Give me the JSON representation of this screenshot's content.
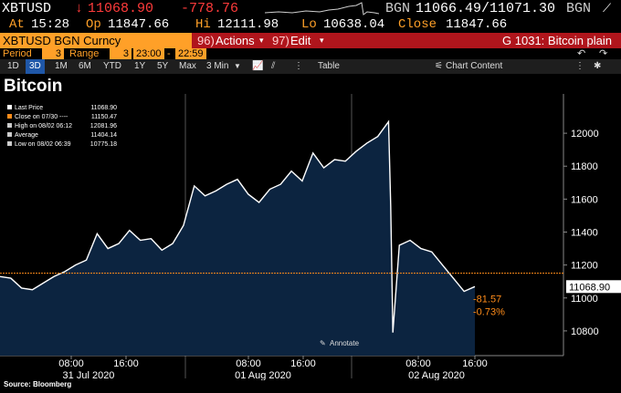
{
  "quote": {
    "ticker": "XBTUSD",
    "last_arrow": "↓",
    "last": "11068.90",
    "change": "-778.76",
    "bgn1": "BGN",
    "bid_ask": "11066.49/11071.30",
    "bgn2": "BGN"
  },
  "quote2": {
    "at_label": "At",
    "at": "15:28",
    "op_label": "Op",
    "op": "11847.66",
    "hi_label": "Hi",
    "hi": "12111.98",
    "lo_label": "Lo",
    "lo": "10638.04",
    "close_label": "Close",
    "close": "11847.66"
  },
  "command_bar": {
    "security": "XBTUSD BGN Curncy",
    "actions_num": "96)",
    "actions": "Actions",
    "edit_num": "97)",
    "edit": "Edit",
    "function": "G 1031: Bitcoin plain"
  },
  "range_bar": {
    "period_label": "Period",
    "period": "3",
    "range_label": "Range",
    "range_val": "3",
    "start": "23:00",
    "end": "22:59"
  },
  "toolbar": {
    "buttons": [
      "1D",
      "3D",
      "1M",
      "6M",
      "YTD",
      "1Y",
      "5Y",
      "Max"
    ],
    "selected": "3D",
    "interval": "3 Min",
    "table": "Table",
    "chart_content": "Chart Content"
  },
  "page_title": "Bitcoin",
  "legend": [
    {
      "label": "Last Price",
      "value": "11068.90",
      "color": "#ffffff"
    },
    {
      "label": "Close on 07/30 ----",
      "value": "11150.47",
      "color": "#ff8c1a"
    },
    {
      "label": "High on 08/02 06:12",
      "value": "12081.96",
      "color": "#cccccc"
    },
    {
      "label": "Average",
      "value": "11404.14",
      "color": "#cccccc"
    },
    {
      "label": "Low on 08/02 06:39",
      "value": "10775.18",
      "color": "#cccccc"
    }
  ],
  "annotate": "Annotate",
  "last_tag": "11068.90",
  "chg_abs": "-81.57",
  "chg_pct": "-0.73%",
  "source": "Source: Bloomberg",
  "colors": {
    "area": "#0c2440",
    "line": "#ffffff",
    "close_line": "#ff8c1a",
    "bg": "#000000"
  },
  "chart_data": {
    "type": "area",
    "title": "Bitcoin",
    "ylim": [
      10650,
      12150
    ],
    "y_ticks": [
      10800,
      11000,
      11200,
      11400,
      11600,
      11800,
      12000
    ],
    "x_tick_labels": [
      "08:00",
      "16:00",
      "08:00",
      "16:00",
      "08:00",
      "16:00"
    ],
    "date_labels": [
      "31 Jul 2020",
      "01 Aug 2020",
      "02 Aug 2020"
    ],
    "close_reference": 11150.47,
    "x": [
      0,
      2,
      4,
      6,
      8,
      10,
      12,
      14,
      16,
      18,
      20,
      22,
      24,
      26,
      28,
      30,
      32,
      34,
      36,
      38,
      40,
      42,
      44,
      46,
      48,
      50,
      52,
      54,
      56,
      58,
      60,
      62,
      64,
      66,
      68,
      70,
      72,
      72.4,
      72.8,
      74,
      76,
      78,
      80,
      82,
      84,
      86,
      88
    ],
    "values": [
      11130,
      11120,
      11060,
      11050,
      11090,
      11130,
      11160,
      11200,
      11230,
      11390,
      11300,
      11330,
      11410,
      11350,
      11360,
      11290,
      11330,
      11440,
      11680,
      11620,
      11650,
      11690,
      11720,
      11630,
      11580,
      11660,
      11690,
      11770,
      11710,
      11880,
      11790,
      11840,
      11830,
      11890,
      11940,
      11980,
      12070,
      11560,
      10790,
      11320,
      11350,
      11300,
      11280,
      11200,
      11120,
      11040,
      11069
    ]
  }
}
